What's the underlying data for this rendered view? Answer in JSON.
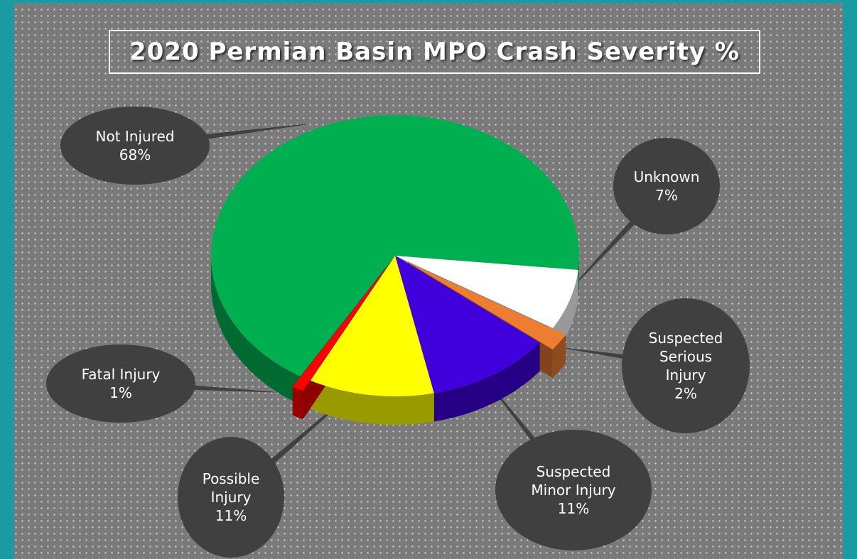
{
  "chart_data": {
    "type": "pie3d",
    "title": "2020 Permian Basin MPO Crash Severity %",
    "categories": [
      "Not Injured",
      "Unknown",
      "Suspected Serious Injury",
      "Suspected Minor Injury",
      "Possible Injury",
      "Fatal Injury"
    ],
    "values": [
      68,
      7,
      2,
      11,
      11,
      1
    ],
    "value_labels": [
      "68%",
      "7%",
      "2%",
      "11%",
      "11%",
      "1%"
    ],
    "colors": [
      "#00b050",
      "#ffffff",
      "#ed7d31",
      "#3f00dc",
      "#ffff00",
      "#ff0000"
    ]
  }
}
